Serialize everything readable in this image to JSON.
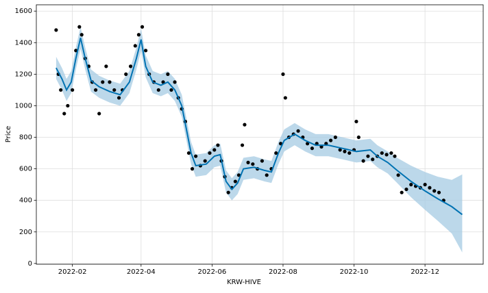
{
  "chart_data": {
    "type": "forecast",
    "xlabel": "KRW-HIVE",
    "ylabel": "Price",
    "xlim": [
      "2022-01-01",
      "2023-01-20"
    ],
    "xticks": [
      {
        "value": "2022-02-01",
        "label": "2022-02"
      },
      {
        "value": "2022-04-01",
        "label": "2022-04"
      },
      {
        "value": "2022-06-01",
        "label": "2022-06"
      },
      {
        "value": "2022-08-01",
        "label": "2022-08"
      },
      {
        "value": "2022-10-01",
        "label": "2022-10"
      },
      {
        "value": "2022-12-01",
        "label": "2022-12"
      }
    ],
    "ylim": [
      -5,
      1640
    ],
    "yticks": [
      0,
      200,
      400,
      600,
      800,
      1000,
      1200,
      1400,
      1600
    ],
    "grid": true,
    "forecast": {
      "color": "#0072b2",
      "band_color": "#a6cbe3",
      "x": [
        "2022-01-18",
        "2022-01-23",
        "2022-01-27",
        "2022-01-31",
        "2022-02-04",
        "2022-02-08",
        "2022-02-12",
        "2022-02-17",
        "2022-02-24",
        "2022-03-05",
        "2022-03-14",
        "2022-03-22",
        "2022-03-28",
        "2022-04-01",
        "2022-04-05",
        "2022-04-11",
        "2022-04-18",
        "2022-04-24",
        "2022-04-30",
        "2022-05-06",
        "2022-05-10",
        "2022-05-14",
        "2022-05-18",
        "2022-05-27",
        "2022-06-03",
        "2022-06-08",
        "2022-06-13",
        "2022-06-18",
        "2022-06-23",
        "2022-06-28",
        "2022-07-07",
        "2022-07-16",
        "2022-07-22",
        "2022-07-28",
        "2022-08-02",
        "2022-08-11",
        "2022-08-20",
        "2022-08-29",
        "2022-09-09",
        "2022-09-21",
        "2022-10-03",
        "2022-10-15",
        "2022-10-21",
        "2022-10-30",
        "2022-11-07",
        "2022-11-19",
        "2022-12-01",
        "2022-12-12",
        "2022-12-24",
        "2023-01-02"
      ],
      "values": [
        1240,
        1170,
        1100,
        1150,
        1300,
        1430,
        1300,
        1160,
        1120,
        1090,
        1070,
        1150,
        1300,
        1420,
        1250,
        1150,
        1130,
        1150,
        1100,
        1000,
        850,
        700,
        620,
        630,
        680,
        690,
        520,
        470,
        510,
        600,
        610,
        590,
        580,
        700,
        780,
        820,
        780,
        750,
        750,
        730,
        710,
        720,
        680,
        640,
        590,
        520,
        460,
        410,
        360,
        310
      ],
      "upper": [
        1310,
        1240,
        1170,
        1220,
        1370,
        1500,
        1370,
        1230,
        1190,
        1160,
        1140,
        1220,
        1370,
        1490,
        1320,
        1220,
        1200,
        1220,
        1170,
        1070,
        920,
        770,
        690,
        700,
        750,
        760,
        590,
        540,
        580,
        670,
        680,
        660,
        650,
        770,
        850,
        890,
        850,
        820,
        820,
        800,
        780,
        790,
        750,
        710,
        670,
        620,
        580,
        550,
        530,
        565
      ],
      "lower": [
        1170,
        1100,
        1030,
        1080,
        1230,
        1360,
        1230,
        1090,
        1050,
        1020,
        1000,
        1080,
        1230,
        1350,
        1180,
        1080,
        1060,
        1080,
        1030,
        930,
        780,
        630,
        550,
        560,
        610,
        620,
        450,
        400,
        440,
        530,
        540,
        520,
        510,
        630,
        710,
        750,
        710,
        680,
        680,
        660,
        640,
        650,
        610,
        570,
        510,
        420,
        340,
        270,
        190,
        70
      ]
    },
    "observed": {
      "color": "#000000",
      "x": [
        "2022-01-18",
        "2022-01-20",
        "2022-01-22",
        "2022-01-25",
        "2022-01-28",
        "2022-02-01",
        "2022-02-04",
        "2022-02-07",
        "2022-02-09",
        "2022-02-12",
        "2022-02-15",
        "2022-02-18",
        "2022-02-21",
        "2022-02-24",
        "2022-02-27",
        "2022-03-02",
        "2022-03-05",
        "2022-03-09",
        "2022-03-13",
        "2022-03-16",
        "2022-03-19",
        "2022-03-23",
        "2022-03-27",
        "2022-03-30",
        "2022-04-02",
        "2022-04-05",
        "2022-04-08",
        "2022-04-12",
        "2022-04-16",
        "2022-04-20",
        "2022-04-24",
        "2022-04-27",
        "2022-04-30",
        "2022-05-03",
        "2022-05-06",
        "2022-05-09",
        "2022-05-12",
        "2022-05-15",
        "2022-05-18",
        "2022-05-22",
        "2022-05-26",
        "2022-05-30",
        "2022-06-03",
        "2022-06-06",
        "2022-06-09",
        "2022-06-12",
        "2022-06-15",
        "2022-06-18",
        "2022-06-21",
        "2022-06-24",
        "2022-06-27",
        "2022-06-29",
        "2022-07-02",
        "2022-07-06",
        "2022-07-10",
        "2022-07-14",
        "2022-07-18",
        "2022-07-22",
        "2022-07-26",
        "2022-07-30",
        "2022-08-01",
        "2022-08-03",
        "2022-08-06",
        "2022-08-10",
        "2022-08-14",
        "2022-08-18",
        "2022-08-22",
        "2022-08-26",
        "2022-08-30",
        "2022-09-03",
        "2022-09-07",
        "2022-09-11",
        "2022-09-15",
        "2022-09-19",
        "2022-09-23",
        "2022-09-27",
        "2022-10-01",
        "2022-10-03",
        "2022-10-05",
        "2022-10-09",
        "2022-10-13",
        "2022-10-17",
        "2022-10-21",
        "2022-10-25",
        "2022-10-29",
        "2022-11-02",
        "2022-11-05",
        "2022-11-08",
        "2022-11-11",
        "2022-11-15",
        "2022-11-19",
        "2022-11-23",
        "2022-11-27",
        "2022-12-01",
        "2022-12-05",
        "2022-12-09",
        "2022-12-13",
        "2022-12-17"
      ],
      "values": [
        1480,
        1200,
        1100,
        950,
        1000,
        1100,
        1350,
        1500,
        1450,
        1300,
        1250,
        1150,
        1100,
        950,
        1150,
        1250,
        1150,
        1100,
        1050,
        1100,
        1200,
        1250,
        1380,
        1450,
        1500,
        1350,
        1200,
        1150,
        1100,
        1150,
        1200,
        1100,
        1150,
        1050,
        980,
        900,
        700,
        600,
        680,
        620,
        650,
        700,
        720,
        750,
        650,
        550,
        450,
        480,
        520,
        560,
        750,
        880,
        640,
        630,
        600,
        650,
        560,
        600,
        700,
        760,
        1200,
        1050,
        800,
        820,
        840,
        800,
        760,
        730,
        760,
        740,
        760,
        780,
        800,
        720,
        710,
        700,
        720,
        900,
        800,
        650,
        680,
        660,
        680,
        700,
        690,
        700,
        680,
        560,
        450,
        470,
        500,
        490,
        480,
        500,
        480,
        460,
        450,
        400
      ]
    }
  }
}
